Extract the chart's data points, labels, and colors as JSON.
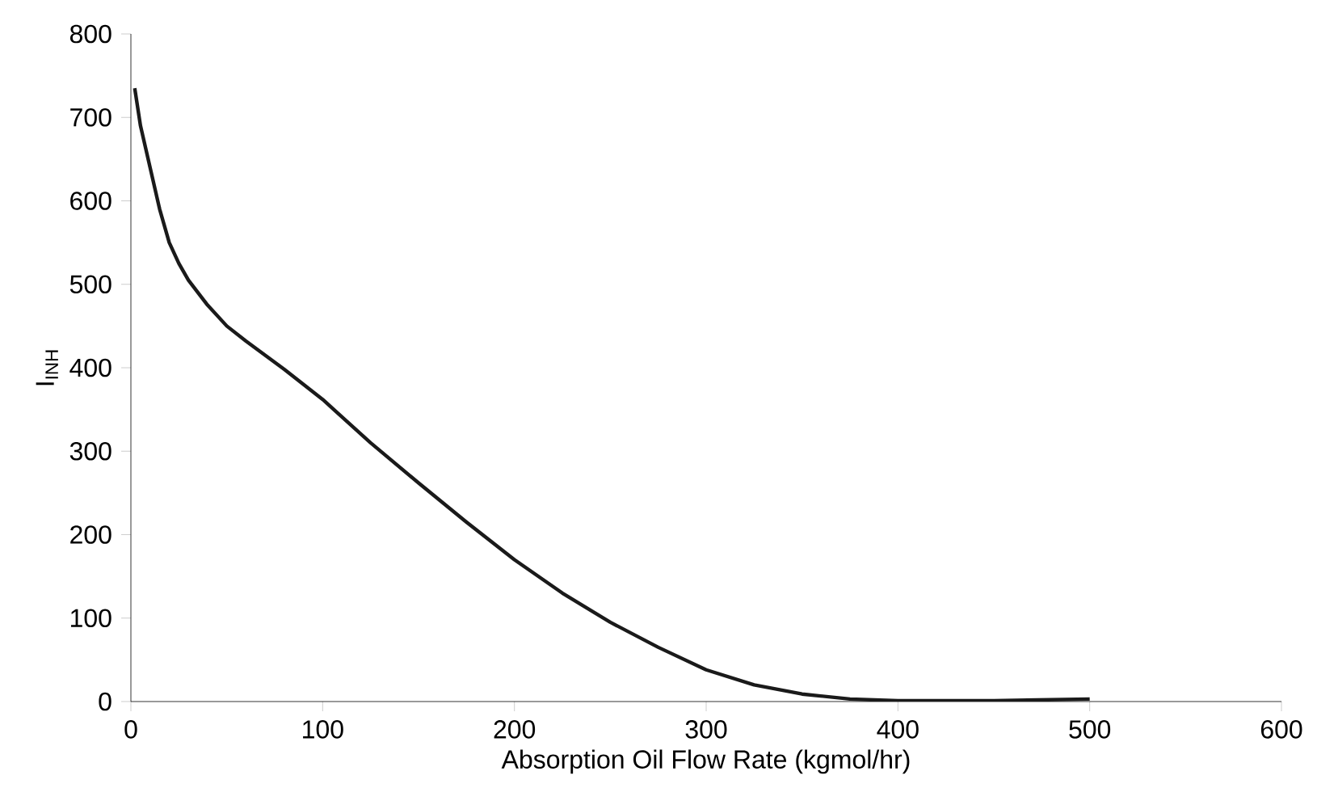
{
  "chart_data": {
    "type": "line",
    "xlabel": "Absorption Oil Flow Rate (kgmol/hr)",
    "ylabel": "I$_{INH}$",
    "xlim": [
      0,
      600
    ],
    "ylim": [
      0,
      800
    ],
    "xticks": [
      0,
      100,
      200,
      300,
      400,
      500,
      600
    ],
    "yticks": [
      0,
      100,
      200,
      300,
      400,
      500,
      600,
      700,
      800
    ],
    "marker": "none",
    "line_style": "solid",
    "series": [
      {
        "color": "#1a1a1a",
        "x": [
          2,
          5,
          10,
          15,
          20,
          25,
          30,
          40,
          50,
          60,
          80,
          100,
          125,
          150,
          175,
          200,
          225,
          250,
          275,
          300,
          325,
          350,
          375,
          400,
          450,
          500
        ],
        "values": [
          735,
          690,
          640,
          590,
          550,
          525,
          505,
          475,
          450,
          432,
          398,
          362,
          310,
          262,
          215,
          170,
          130,
          95,
          65,
          38,
          20,
          9,
          3,
          1,
          1,
          3
        ]
      }
    ]
  }
}
